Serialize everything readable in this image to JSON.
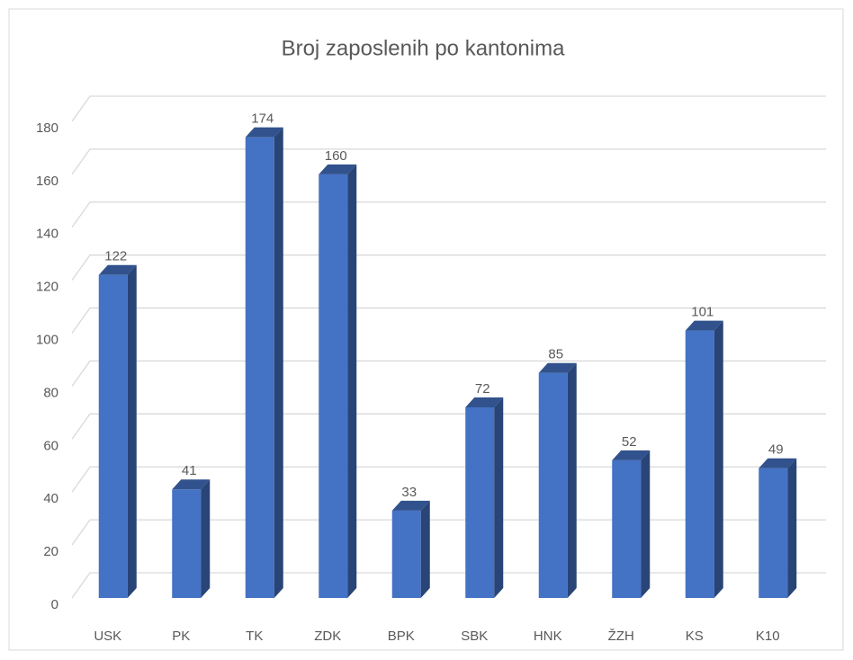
{
  "chart_data": {
    "type": "bar",
    "title": "Broj zaposlenih po kantonima",
    "categories": [
      "USK",
      "PK",
      "TK",
      "ZDK",
      "BPK",
      "SBK",
      "HNK",
      "ŽZH",
      "KS",
      "K10"
    ],
    "values": [
      122,
      41,
      174,
      160,
      33,
      72,
      85,
      52,
      101,
      49
    ],
    "color": "#4472c4",
    "ylim": [
      0,
      180
    ],
    "yticks": [
      0,
      20,
      40,
      60,
      80,
      100,
      120,
      140,
      160,
      180
    ],
    "grid": true
  }
}
